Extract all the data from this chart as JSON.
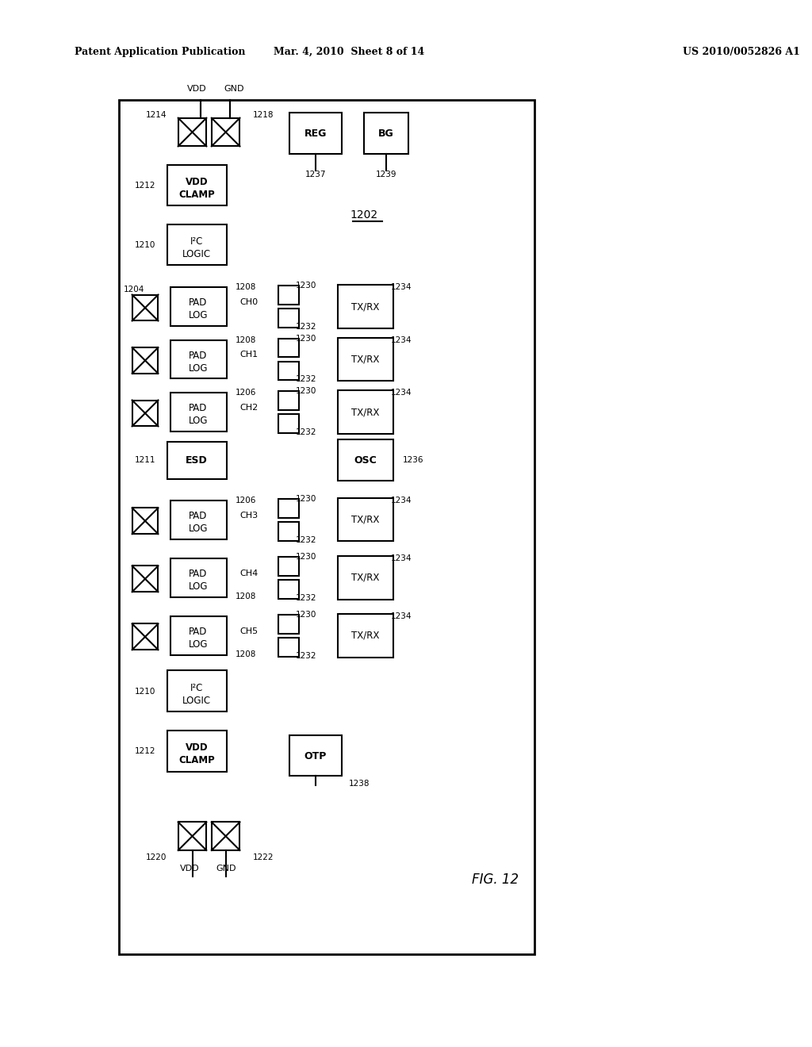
{
  "title_left": "Patent Application Publication",
  "title_mid": "Mar. 4, 2010  Sheet 8 of 14",
  "title_right": "US 2010/0052826 A1",
  "fig_label": "FIG. 12",
  "bg_color": "#ffffff",
  "border_color": "#000000",
  "text_color": "#000000",
  "diagram_label": "1202"
}
